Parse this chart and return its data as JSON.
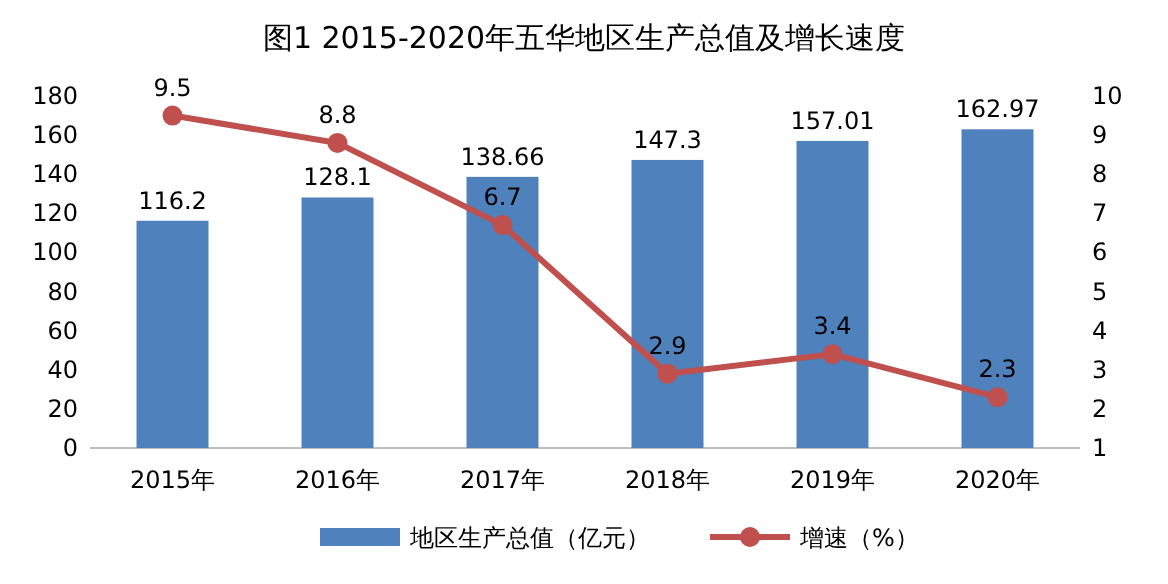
{
  "chart_data": {
    "type": "bar",
    "title": "图1 2015-2020年五华地区生产总值及增长速度",
    "categories": [
      "2015年",
      "2016年",
      "2017年",
      "2018年",
      "2019年",
      "2020年"
    ],
    "series": [
      {
        "name": "地区生产总值（亿元）",
        "color": "#4f81bd",
        "values": [
          116.2,
          128.1,
          138.66,
          147.3,
          157.01,
          162.97
        ]
      },
      {
        "name": "增速（%）",
        "type": "line",
        "axis": "y2",
        "color": "#c0504d",
        "marker": "circle",
        "values": [
          9.5,
          8.8,
          6.7,
          2.9,
          3.4,
          2.3
        ]
      }
    ],
    "ylim": [
      0,
      180
    ],
    "yticks": [
      0,
      20,
      40,
      60,
      80,
      100,
      120,
      140,
      160,
      180
    ],
    "y2lim": [
      1,
      10
    ],
    "y2ticks": [
      1,
      2,
      3,
      4,
      5,
      6,
      7,
      8,
      9,
      10
    ],
    "data_labels": true,
    "legend": "bottom",
    "grid": false
  }
}
